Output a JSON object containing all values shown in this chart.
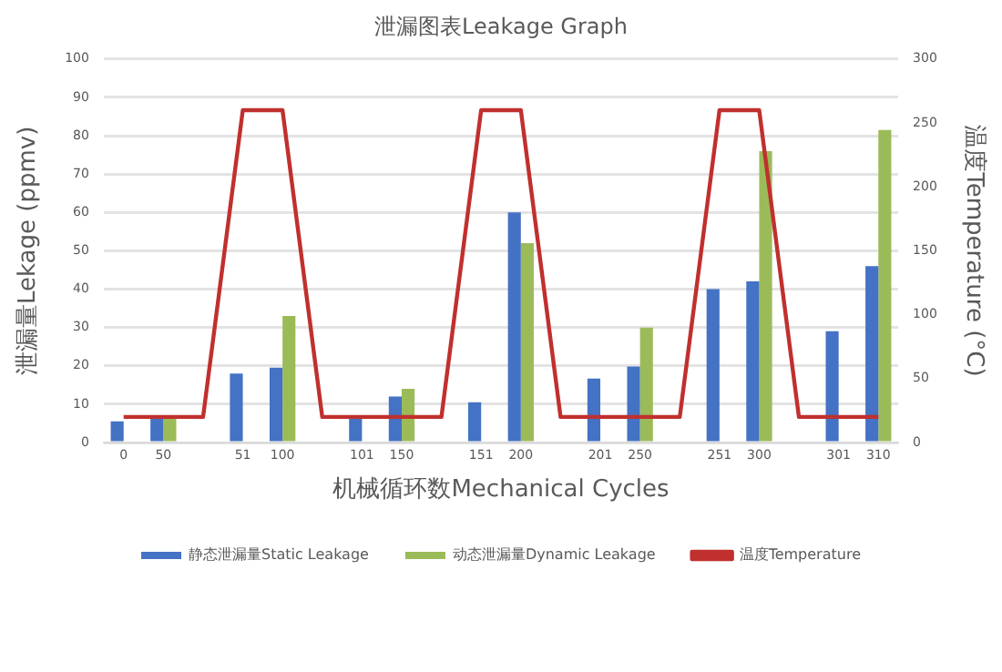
{
  "chart_data": {
    "type": "bar",
    "title": "泄漏图表Leakage Graph",
    "xlabel": "机械循环数Mechanical Cycles",
    "ylabel": "泄漏量Lekage (ppmv)",
    "y2label": "温度Temperature (°C)",
    "categories": [
      "0",
      "50",
      null,
      "51",
      "100",
      null,
      "101",
      "150",
      null,
      "151",
      "200",
      null,
      "201",
      "250",
      null,
      "251",
      "300",
      null,
      "301",
      "310"
    ],
    "series": [
      {
        "name": "静态泄漏量Static Leakage",
        "color": "#4472c4",
        "values": [
          5.5,
          6.5,
          null,
          18,
          19.5,
          null,
          6.5,
          12,
          null,
          10.5,
          60,
          null,
          16.7,
          19.8,
          null,
          40,
          42,
          null,
          29,
          46
        ]
      },
      {
        "name": "动态泄漏量Dynamic Leakage",
        "color": "#9bbb59",
        "values": [
          null,
          6.5,
          null,
          null,
          33,
          null,
          null,
          14,
          null,
          null,
          52,
          null,
          null,
          30,
          null,
          null,
          76,
          null,
          null,
          81.5
        ]
      },
      {
        "name": "温度Temperature",
        "type": "line",
        "axis": "y2",
        "color": "#c0302e",
        "marker": "none",
        "values": [
          20,
          20,
          20,
          260,
          260,
          20,
          20,
          20,
          20,
          260,
          260,
          20,
          20,
          20,
          20,
          260,
          260,
          20,
          20,
          20
        ]
      }
    ],
    "ylim": [
      0,
      100
    ],
    "yticks": [
      0,
      10,
      20,
      30,
      40,
      50,
      60,
      70,
      80,
      90,
      100
    ],
    "y2lim": [
      0,
      300
    ],
    "y2ticks": [
      0,
      50,
      100,
      150,
      200,
      250,
      300
    ],
    "grid": "y",
    "legend": "bottom"
  }
}
